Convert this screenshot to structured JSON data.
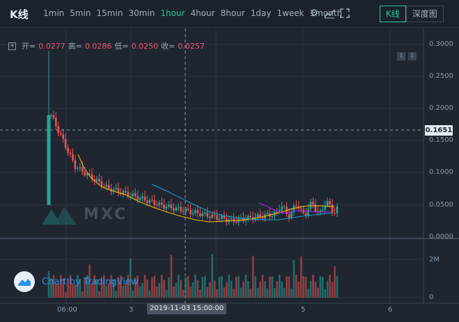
{
  "header": {
    "title": "K线",
    "intervals": [
      "1min",
      "5min",
      "15min",
      "30min",
      "1hour",
      "4hour",
      "8hour",
      "1day",
      "1week",
      "1month"
    ],
    "active_interval": "1hour",
    "icons": [
      "gear-icon",
      "indicator-icon",
      "fullscreen-icon"
    ],
    "view_buttons": [
      {
        "label": "K线",
        "active": true
      },
      {
        "label": "深度图",
        "active": false
      }
    ]
  },
  "ohlc": {
    "open_label": "开=",
    "open": "0.0277",
    "high_label": "高=",
    "high": "0.0286",
    "low_label": "低=",
    "low": "0.0250",
    "close_label": "收=",
    "close": "0.0257"
  },
  "price_axis": [
    "0.3000",
    "0.2500",
    "0.2000",
    "0.1500",
    "0.1000",
    "0.0500",
    "0.0000"
  ],
  "volume_axis": [
    "2M",
    "0"
  ],
  "current_price_tag": "0.1651",
  "time_axis": [
    "06:00",
    "3",
    "5",
    "6"
  ],
  "crosshair_date": "2019-11-03 15:00:00",
  "watermark": "MXC",
  "tv_branding": "Chart by TradingView",
  "colors": {
    "up": "#26a69a",
    "down": "#ef5350",
    "accent": "#26c994",
    "ma1": "#f0b90b",
    "ma2": "#1e9fd6",
    "ma3": "#a020f0"
  }
}
